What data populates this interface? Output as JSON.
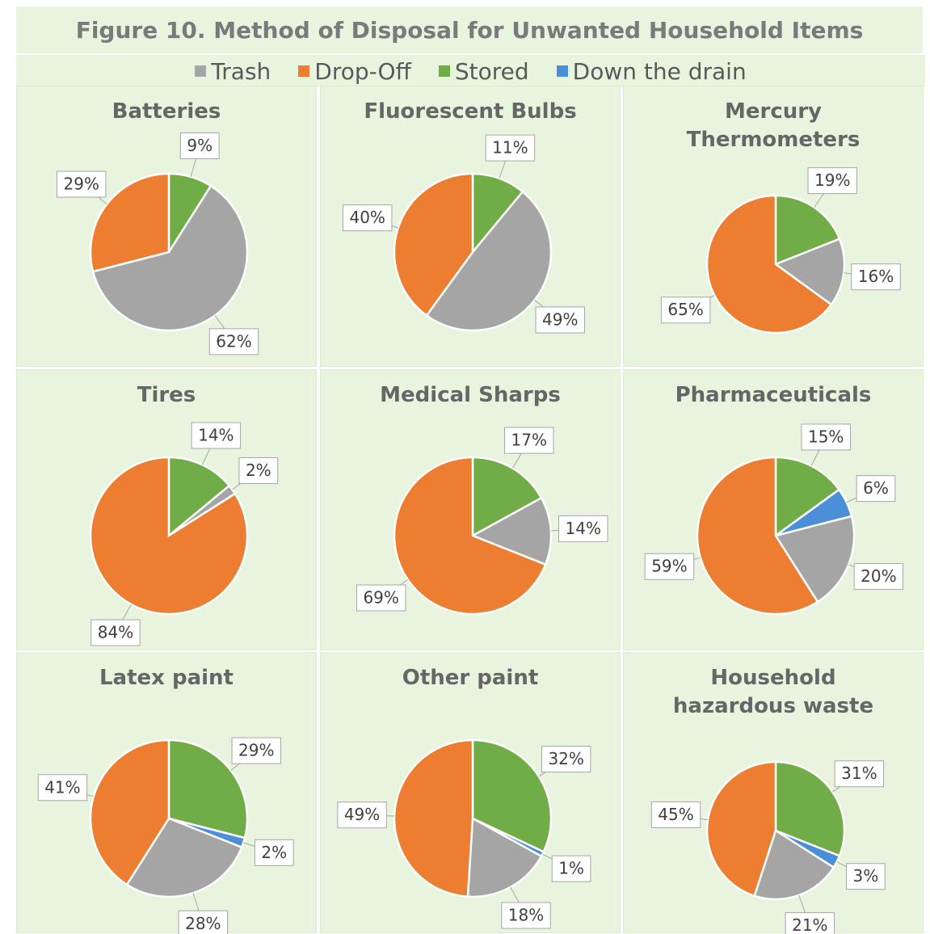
{
  "title": "Figure 10. Method of Disposal for Unwanted Household Items",
  "legend": [
    {
      "name": "Trash",
      "color": "#a5a5a5"
    },
    {
      "name": "Drop-Off",
      "color": "#ed7d31"
    },
    {
      "name": "Stored",
      "color": "#70ad47"
    },
    {
      "name": "Down the drain",
      "color": "#4a8fd8"
    }
  ],
  "chart_data": [
    {
      "type": "pie",
      "title": "Batteries",
      "categories": [
        "Stored",
        "Trash",
        "Drop-Off"
      ],
      "colors": [
        "#70ad47",
        "#a5a5a5",
        "#ed7d31"
      ],
      "values": [
        9,
        62,
        29
      ],
      "value_labels": [
        "9%",
        "62%",
        "29%"
      ]
    },
    {
      "type": "pie",
      "title": "Fluorescent Bulbs",
      "categories": [
        "Stored",
        "Trash",
        "Drop-Off"
      ],
      "colors": [
        "#70ad47",
        "#a5a5a5",
        "#ed7d31"
      ],
      "values": [
        11,
        49,
        40
      ],
      "value_labels": [
        "11%",
        "49%",
        "40%"
      ]
    },
    {
      "type": "pie",
      "title": "Mercury Thermometers",
      "categories": [
        "Stored",
        "Trash",
        "Drop-Off"
      ],
      "colors": [
        "#70ad47",
        "#a5a5a5",
        "#ed7d31"
      ],
      "values": [
        19,
        16,
        65
      ],
      "value_labels": [
        "19%",
        "16%",
        "65%"
      ]
    },
    {
      "type": "pie",
      "title": "Tires",
      "categories": [
        "Stored",
        "Trash",
        "Drop-Off"
      ],
      "colors": [
        "#70ad47",
        "#a5a5a5",
        "#ed7d31"
      ],
      "values": [
        14,
        2,
        84
      ],
      "value_labels": [
        "14%",
        "2%",
        "84%"
      ]
    },
    {
      "type": "pie",
      "title": "Medical Sharps",
      "categories": [
        "Stored",
        "Trash",
        "Drop-Off"
      ],
      "colors": [
        "#70ad47",
        "#a5a5a5",
        "#ed7d31"
      ],
      "values": [
        17,
        14,
        69
      ],
      "value_labels": [
        "17%",
        "14%",
        "69%"
      ]
    },
    {
      "type": "pie",
      "title": "Pharmaceuticals",
      "categories": [
        "Stored",
        "Down the drain",
        "Trash",
        "Drop-Off"
      ],
      "colors": [
        "#70ad47",
        "#4a8fd8",
        "#a5a5a5",
        "#ed7d31"
      ],
      "values": [
        15,
        6,
        20,
        59
      ],
      "value_labels": [
        "15%",
        "6%",
        "20%",
        "59%"
      ]
    },
    {
      "type": "pie",
      "title": "Latex paint",
      "categories": [
        "Stored",
        "Down the drain",
        "Trash",
        "Drop-Off"
      ],
      "colors": [
        "#70ad47",
        "#4a8fd8",
        "#a5a5a5",
        "#ed7d31"
      ],
      "values": [
        29,
        2,
        28,
        41
      ],
      "value_labels": [
        "29%",
        "2%",
        "28%",
        "41%"
      ]
    },
    {
      "type": "pie",
      "title": "Other paint",
      "categories": [
        "Stored",
        "Down the drain",
        "Trash",
        "Drop-Off"
      ],
      "colors": [
        "#70ad47",
        "#4a8fd8",
        "#a5a5a5",
        "#ed7d31"
      ],
      "values": [
        32,
        1,
        18,
        49
      ],
      "value_labels": [
        "32%",
        "1%",
        "18%",
        "49%"
      ]
    },
    {
      "type": "pie",
      "title": "Household hazardous waste",
      "categories": [
        "Stored",
        "Down the drain",
        "Trash",
        "Drop-Off"
      ],
      "colors": [
        "#70ad47",
        "#4a8fd8",
        "#a5a5a5",
        "#ed7d31"
      ],
      "values": [
        31,
        3,
        21,
        45
      ],
      "value_labels": [
        "31%",
        "3%",
        "21%",
        "45%"
      ]
    }
  ]
}
